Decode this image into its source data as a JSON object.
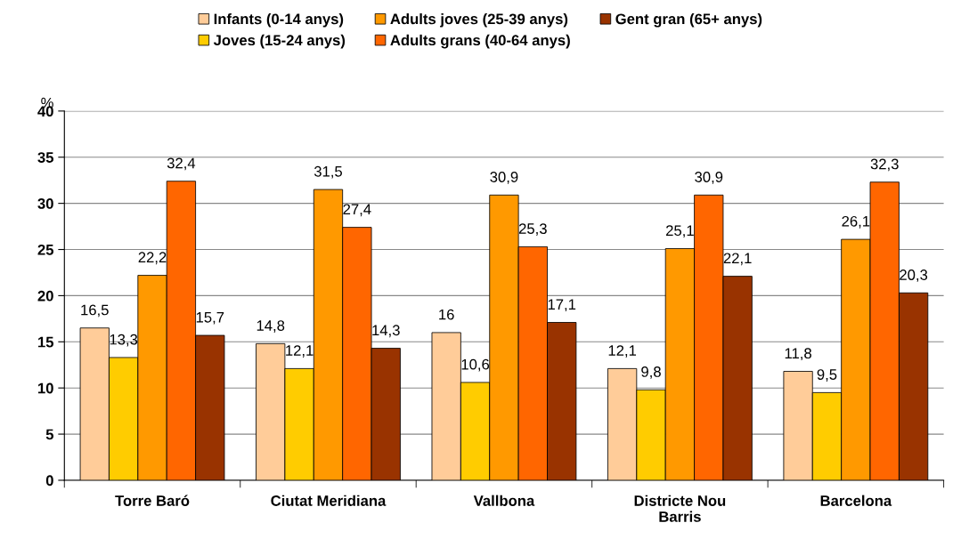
{
  "chart_data": {
    "type": "bar",
    "ylabel": "%",
    "categories": [
      "Torre Baró",
      "Ciutat Meridiana",
      "Vallbona",
      "Districte Nou Barris",
      "Barcelona"
    ],
    "series": [
      {
        "name": "Infants (0-14 anys)",
        "color": "#ffcc99",
        "values": [
          16.5,
          14.8,
          16,
          12.1,
          11.8
        ],
        "value_labels": [
          "16,5",
          "14,8",
          "16",
          "12,1",
          "11,8"
        ]
      },
      {
        "name": "Joves (15-24 anys)",
        "color": "#ffcc00",
        "values": [
          13.3,
          12.1,
          10.6,
          9.8,
          9.5
        ],
        "value_labels": [
          "13,3",
          "12,1",
          "10,6",
          "9,8",
          "9,5"
        ]
      },
      {
        "name": "Adults joves (25-39 anys)",
        "color": "#ff9900",
        "values": [
          22.2,
          31.5,
          30.9,
          25.1,
          26.1
        ],
        "value_labels": [
          "22,2",
          "31,5",
          "30,9",
          "25,1",
          "26,1"
        ]
      },
      {
        "name": "Adults grans (40-64 anys)",
        "color": "#ff6600",
        "values": [
          32.4,
          27.4,
          25.3,
          30.9,
          32.3
        ],
        "value_labels": [
          "32,4",
          "27,4",
          "25,3",
          "30,9",
          "32,3"
        ]
      },
      {
        "name": "Gent gran (65+ anys)",
        "color": "#993300",
        "values": [
          15.7,
          14.3,
          17.1,
          22.1,
          20.3
        ],
        "value_labels": [
          "15,7",
          "14,3",
          "17,1",
          "22,1",
          "20,3"
        ]
      }
    ],
    "ylim": [
      0,
      40
    ],
    "yticks": [
      0,
      5,
      10,
      15,
      20,
      25,
      30,
      35,
      40
    ],
    "grid": "y",
    "legend": "top"
  }
}
